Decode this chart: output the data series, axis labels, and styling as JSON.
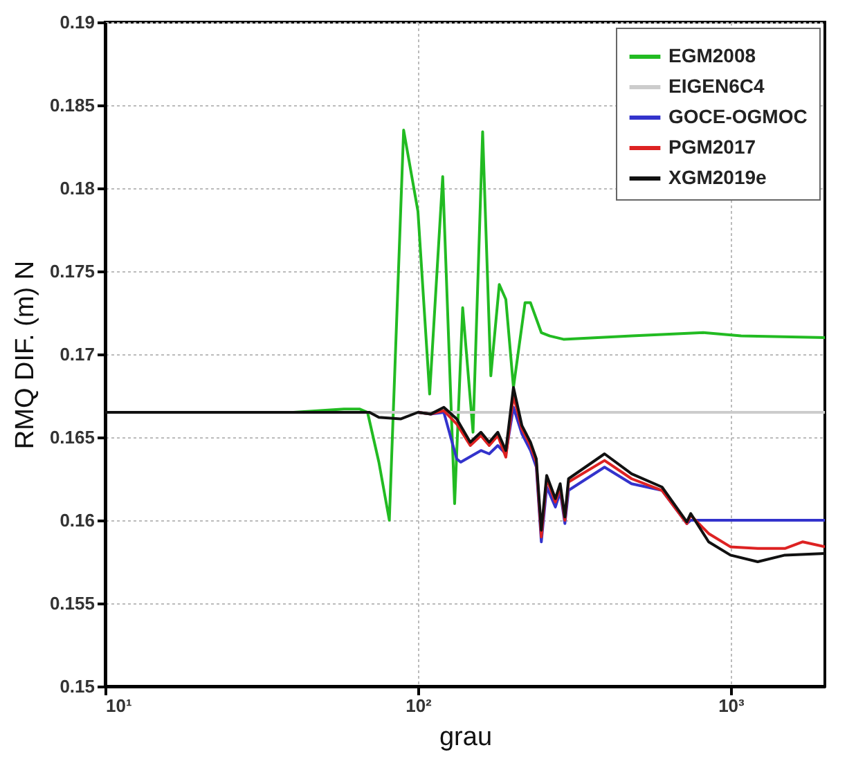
{
  "chart_data": {
    "type": "line",
    "xlabel": "grau",
    "ylabel": "RMQ DIF. (m)  N",
    "log": "x",
    "grid": true,
    "legend": "top right",
    "line_style": "solid",
    "xlim": [
      10,
      2000
    ],
    "xticks": [
      {
        "value": 10,
        "label": "10¹"
      },
      {
        "value": 100,
        "label": "10²"
      },
      {
        "value": 1000,
        "label": "10³"
      }
    ],
    "ylim": [
      0.15,
      0.19
    ],
    "yticks": [
      0.15,
      0.155,
      0.16,
      0.165,
      0.17,
      0.175,
      0.18,
      0.185,
      0.19
    ],
    "series": [
      {
        "name": "EGM2008",
        "color": "#22bb22",
        "x": [
          10,
          40,
          58,
          65,
          69,
          75,
          81,
          90,
          100,
          109,
          120,
          131,
          139,
          150,
          161,
          171,
          182,
          191,
          202,
          220,
          229,
          248,
          264,
          292,
          482,
          817,
          1080,
          2000
        ],
        "values": [
          0.1665,
          0.1665,
          0.1667,
          0.1667,
          0.1665,
          0.1635,
          0.16,
          0.1835,
          0.1786,
          0.1676,
          0.1807,
          0.161,
          0.1728,
          0.1653,
          0.1834,
          0.1687,
          0.1742,
          0.1733,
          0.168,
          0.1731,
          0.1731,
          0.1713,
          0.1711,
          0.1709,
          0.1711,
          0.1713,
          0.1711,
          0.171
        ]
      },
      {
        "name": "EIGEN6C4",
        "color": "#cccccc",
        "x": [
          10,
          2000
        ],
        "values": [
          0.1665,
          0.1665
        ]
      },
      {
        "name": "GOCE-OGMOC",
        "color": "#3333cc",
        "x": [
          100,
          110,
          121,
          133,
          137,
          159,
          169,
          180,
          191,
          202,
          215,
          229,
          239,
          248,
          258,
          275,
          285,
          295,
          303,
          395,
          482,
          603,
          724,
          745,
          2000
        ],
        "values": [
          0.1665,
          0.1664,
          0.1665,
          0.1637,
          0.1635,
          0.1642,
          0.164,
          0.1645,
          0.164,
          0.1668,
          0.1652,
          0.1642,
          0.1632,
          0.1587,
          0.162,
          0.1608,
          0.1617,
          0.1598,
          0.1618,
          0.1632,
          0.1622,
          0.1618,
          0.1598,
          0.16,
          0.16
        ]
      },
      {
        "name": "PGM2017",
        "color": "#dd2222",
        "x": [
          100,
          110,
          121,
          133,
          147,
          159,
          169,
          180,
          191,
          202,
          215,
          229,
          239,
          248,
          258,
          275,
          285,
          295,
          303,
          395,
          482,
          603,
          724,
          745,
          850,
          998,
          1220,
          1490,
          1700,
          2000
        ],
        "values": [
          0.1665,
          0.1664,
          0.1666,
          0.1658,
          0.1645,
          0.1651,
          0.1645,
          0.1651,
          0.1638,
          0.1675,
          0.1655,
          0.1645,
          0.1635,
          0.159,
          0.1625,
          0.1611,
          0.162,
          0.16,
          0.1623,
          0.1636,
          0.1625,
          0.1618,
          0.1598,
          0.1603,
          0.1592,
          0.1584,
          0.1583,
          0.1583,
          0.1587,
          0.1584
        ]
      },
      {
        "name": "XGM2019e",
        "color": "#111111",
        "x": [
          10,
          70,
          75,
          88,
          100,
          110,
          121,
          133,
          147,
          159,
          169,
          180,
          191,
          202,
          215,
          229,
          239,
          248,
          258,
          275,
          285,
          295,
          303,
          395,
          482,
          603,
          724,
          745,
          850,
          998,
          1220,
          1490,
          2000
        ],
        "values": [
          0.1665,
          0.1665,
          0.1662,
          0.1661,
          0.1665,
          0.1664,
          0.1668,
          0.1661,
          0.1647,
          0.1653,
          0.1647,
          0.1653,
          0.1642,
          0.168,
          0.1657,
          0.1647,
          0.1637,
          0.1594,
          0.1627,
          0.1613,
          0.1622,
          0.1602,
          0.1625,
          0.164,
          0.1628,
          0.162,
          0.1599,
          0.1604,
          0.1587,
          0.1579,
          0.1575,
          0.1579,
          0.158
        ]
      }
    ]
  }
}
